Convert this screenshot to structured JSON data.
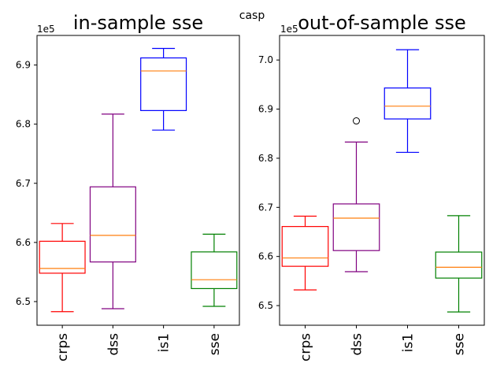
{
  "figure": {
    "suptitle": "casp"
  },
  "chart_data": [
    {
      "type": "boxplot",
      "title": "in-sample sse",
      "offset_label": "1e5",
      "categories": [
        "crps",
        "dss",
        "is1",
        "sse"
      ],
      "ylim": [
        6.46,
        6.95
      ],
      "yticks": [
        6.5,
        6.6,
        6.7,
        6.8,
        6.9
      ],
      "ytick_labels": [
        "6.5",
        "6.6",
        "6.7",
        "6.8",
        "6.9"
      ],
      "colors": [
        "#ff0000",
        "#800080",
        "#0000ff",
        "#008000"
      ],
      "median_color": "#ff7f0e",
      "boxes": [
        {
          "label": "crps",
          "whislo": 6.483,
          "q1": 6.548,
          "med": 6.556,
          "q3": 6.602,
          "whishi": 6.632,
          "fliers": []
        },
        {
          "label": "dss",
          "whislo": 6.488,
          "q1": 6.567,
          "med": 6.612,
          "q3": 6.694,
          "whishi": 6.817,
          "fliers": []
        },
        {
          "label": "is1",
          "whislo": 6.79,
          "q1": 6.823,
          "med": 6.89,
          "q3": 6.912,
          "whishi": 6.928,
          "fliers": []
        },
        {
          "label": "sse",
          "whislo": 6.492,
          "q1": 6.522,
          "med": 6.537,
          "q3": 6.584,
          "whishi": 6.614,
          "fliers": []
        }
      ]
    },
    {
      "type": "boxplot",
      "title": "out-of-sample sse",
      "offset_label": "1e5",
      "categories": [
        "crps",
        "dss",
        "is1",
        "sse"
      ],
      "ylim": [
        6.46,
        7.05
      ],
      "yticks": [
        6.5,
        6.6,
        6.7,
        6.8,
        6.9,
        7.0
      ],
      "ytick_labels": [
        "6.5",
        "6.6",
        "6.7",
        "6.8",
        "6.9",
        "7.0"
      ],
      "colors": [
        "#ff0000",
        "#800080",
        "#0000ff",
        "#008000"
      ],
      "median_color": "#ff7f0e",
      "boxes": [
        {
          "label": "crps",
          "whislo": 6.532,
          "q1": 6.58,
          "med": 6.597,
          "q3": 6.661,
          "whishi": 6.682,
          "fliers": []
        },
        {
          "label": "dss",
          "whislo": 6.569,
          "q1": 6.612,
          "med": 6.678,
          "q3": 6.707,
          "whishi": 6.833,
          "fliers": [
            6.876
          ]
        },
        {
          "label": "is1",
          "whislo": 6.812,
          "q1": 6.88,
          "med": 6.906,
          "q3": 6.943,
          "whishi": 7.021,
          "fliers": []
        },
        {
          "label": "sse",
          "whislo": 6.487,
          "q1": 6.556,
          "med": 6.578,
          "q3": 6.609,
          "whishi": 6.683,
          "fliers": []
        }
      ]
    }
  ]
}
